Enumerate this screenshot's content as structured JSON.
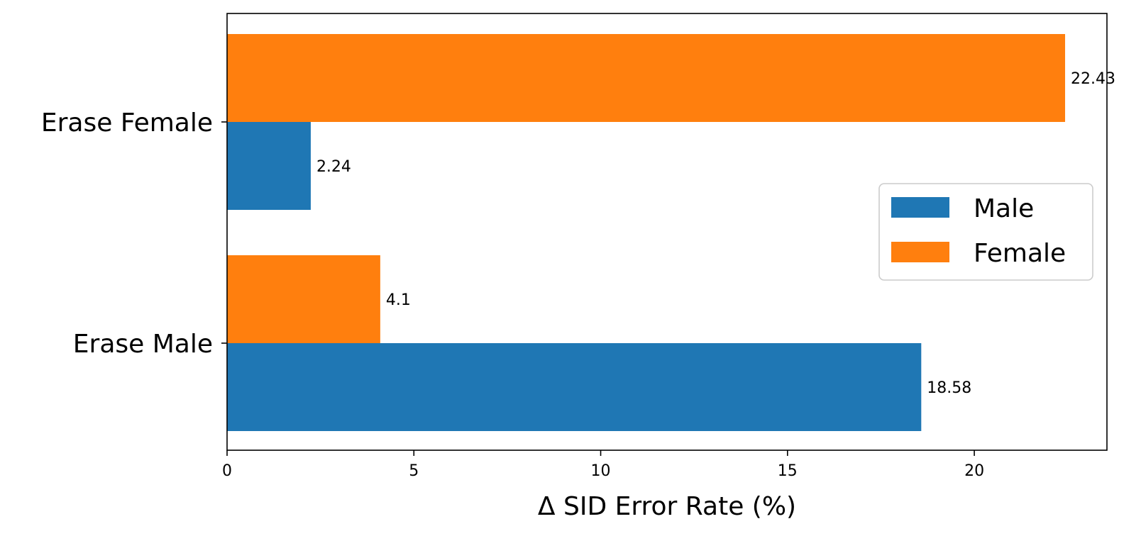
{
  "chart_data": {
    "type": "bar",
    "orientation": "horizontal",
    "categories": [
      "Erase Male",
      "Erase Female"
    ],
    "series": [
      {
        "name": "Male",
        "color": "#1f77b4",
        "values": [
          18.58,
          2.24
        ],
        "labels": [
          "18.58",
          "2.24"
        ]
      },
      {
        "name": "Female",
        "color": "#ff7f0e",
        "values": [
          4.1,
          22.43
        ],
        "labels": [
          "4.1",
          "22.43"
        ]
      }
    ],
    "xlabel": "Δ SID Error Rate (%)",
    "ylabel": "",
    "title": "",
    "xlim": [
      0,
      23.55
    ],
    "xticks": [
      0,
      5,
      10,
      15,
      20
    ],
    "xtick_labels": [
      "0",
      "5",
      "10",
      "15",
      "20"
    ],
    "grid": false,
    "legend_position": "center-right"
  }
}
